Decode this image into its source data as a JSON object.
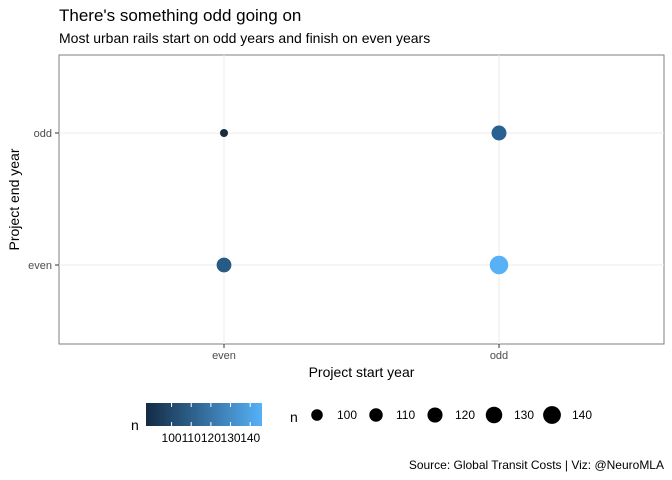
{
  "chart_data": {
    "type": "scatter",
    "title": "There's something odd going on",
    "subtitle": "Most urban rails start on odd years and finish on even years",
    "xlabel": "Project start year",
    "ylabel": "Project end year",
    "x_categories": [
      "even",
      "odd"
    ],
    "y_categories": [
      "even",
      "odd"
    ],
    "points": [
      {
        "x": "even",
        "y": "odd",
        "n": 87,
        "color": "#1a2e40"
      },
      {
        "x": "even",
        "y": "even",
        "n": 118,
        "color": "#275b85"
      },
      {
        "x": "odd",
        "y": "odd",
        "n": 119,
        "color": "#2a6193"
      },
      {
        "x": "odd",
        "y": "even",
        "n": 146,
        "color": "#56b1f7"
      }
    ],
    "color_legend": {
      "title": "n",
      "ticks": [
        100,
        110,
        120,
        130,
        140
      ],
      "range": [
        87,
        146
      ],
      "low_color": "#132B43",
      "high_color": "#56B1F7"
    },
    "size_legend": {
      "title": "n",
      "values": [
        100,
        110,
        120,
        130,
        140
      ]
    },
    "grid": true,
    "legend_position": "bottom",
    "caption": "Source: Global Transit Costs | Viz: @NeuroMLA"
  }
}
